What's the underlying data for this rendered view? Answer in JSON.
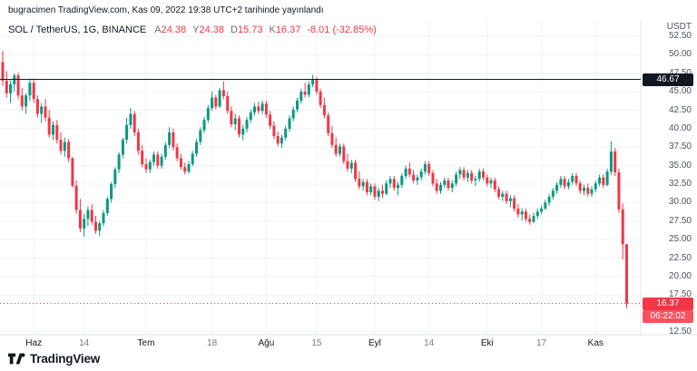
{
  "header": {
    "publish_info": "bugracimen TradingView.com, Kas 09, 2022 19:38 UTC+2 tarihinde yayınlandı"
  },
  "legend": {
    "symbol": "SOL / TetherUS, 1G, BINANCE",
    "ohlc": [
      {
        "label": "A",
        "value": "24.38"
      },
      {
        "label": "Y",
        "value": "24.38"
      },
      {
        "label": "D",
        "value": "15.73"
      },
      {
        "label": "K",
        "value": "16.37"
      }
    ],
    "change": "-8.01 (-32.85%)"
  },
  "price_axis": {
    "unit": "USDT",
    "hline_label": "46.67",
    "last_label": "16.37",
    "countdown": "06:22:02"
  },
  "footer": {
    "brand": "TradingView"
  },
  "colors": {
    "up": "#089981",
    "down": "#f23645",
    "hline": "#131722",
    "countdown": "#f7525f",
    "grid": "#f0f3fa",
    "border": "#e0e3eb",
    "text": "#131722",
    "axis_text": "#50535e"
  },
  "chart_data": {
    "type": "candlestick",
    "title": "SOL / TetherUS, 1G, BINANCE",
    "interval": "1G",
    "quote_unit": "USDT",
    "ylim": [
      12.5,
      52.5
    ],
    "y_ticks": [
      "52.50",
      "50.00",
      "47.50",
      "45.00",
      "42.50",
      "40.00",
      "37.50",
      "35.00",
      "32.50",
      "30.00",
      "27.50",
      "25.00",
      "22.50",
      "20.00",
      "17.50",
      "12.50"
    ],
    "x_ticks": [
      {
        "label": "Haz",
        "index": 8,
        "month": true
      },
      {
        "label": "14",
        "index": 21,
        "month": false
      },
      {
        "label": "Tem",
        "index": 37,
        "month": true
      },
      {
        "label": "18",
        "index": 54,
        "month": false
      },
      {
        "label": "Ağu",
        "index": 68,
        "month": true
      },
      {
        "label": "15",
        "index": 81,
        "month": false
      },
      {
        "label": "Eyl",
        "index": 96,
        "month": true
      },
      {
        "label": "14",
        "index": 110,
        "month": false
      },
      {
        "label": "Eki",
        "index": 125,
        "month": true
      },
      {
        "label": "17",
        "index": 139,
        "month": false
      },
      {
        "label": "Kas",
        "index": 153,
        "month": true
      }
    ],
    "hline": {
      "price": 46.67,
      "label": "46.67"
    },
    "last_price": {
      "price": 16.37,
      "label": "16.37",
      "countdown": "06:22:02"
    },
    "last_bar": {
      "open": 24.38,
      "high": 24.38,
      "low": 15.73,
      "close": 16.37,
      "change": -8.01,
      "change_pct": -32.85
    },
    "ohlc": [
      [
        49,
        50.5,
        45.8,
        46.5
      ],
      [
        46.5,
        47.8,
        44.2,
        44.8
      ],
      [
        44.8,
        46.5,
        43.5,
        46
      ],
      [
        46,
        47.5,
        45,
        47.2
      ],
      [
        47.2,
        47.6,
        44,
        44.5
      ],
      [
        44.5,
        45.5,
        42.5,
        43
      ],
      [
        43,
        44.8,
        42,
        44.5
      ],
      [
        44.5,
        46.8,
        43.8,
        46.2
      ],
      [
        46.2,
        46.8,
        43.5,
        44
      ],
      [
        44,
        44.5,
        41.5,
        42
      ],
      [
        42,
        43.5,
        40.8,
        43
      ],
      [
        43,
        44,
        41,
        41.5
      ],
      [
        41.5,
        42.5,
        38.8,
        39.2
      ],
      [
        39.2,
        41,
        38.5,
        40.5
      ],
      [
        40.5,
        41.2,
        38,
        38.5
      ],
      [
        38.5,
        39.5,
        36.5,
        37
      ],
      [
        37,
        38.8,
        36.2,
        38.2
      ],
      [
        38.2,
        38.6,
        35.5,
        36
      ],
      [
        36,
        36.2,
        32,
        32.3
      ],
      [
        32.3,
        33,
        28.5,
        29
      ],
      [
        29,
        30.5,
        26,
        26.5
      ],
      [
        26.5,
        28.5,
        25.4,
        27.8
      ],
      [
        27.8,
        29.5,
        26.8,
        29
      ],
      [
        29,
        29.8,
        27,
        27.4
      ],
      [
        27.4,
        28.2,
        25.8,
        26.2
      ],
      [
        26.2,
        27.5,
        25.5,
        27.2
      ],
      [
        27.2,
        29,
        26.8,
        28.6
      ],
      [
        28.6,
        30.8,
        28.2,
        30.5
      ],
      [
        30.5,
        32.8,
        30,
        32.5
      ],
      [
        32.5,
        34.8,
        32,
        34.5
      ],
      [
        34.5,
        36.8,
        34,
        36.5
      ],
      [
        36.5,
        38.8,
        36,
        38.5
      ],
      [
        38.5,
        41.5,
        38,
        40.5
      ],
      [
        40.5,
        42.8,
        40,
        42
      ],
      [
        42,
        42.4,
        39,
        39.5
      ],
      [
        39.5,
        40,
        36.5,
        37
      ],
      [
        37,
        37.8,
        34.8,
        35.2
      ],
      [
        35.2,
        36,
        34,
        34.5
      ],
      [
        34.5,
        35.8,
        34,
        35.5
      ],
      [
        35.5,
        36.9,
        35,
        36.5
      ],
      [
        36.5,
        36.9,
        34.6,
        35
      ],
      [
        35,
        36.6,
        34.6,
        36.2
      ],
      [
        36.2,
        38.2,
        35.8,
        37.8
      ],
      [
        37.8,
        40.2,
        37.4,
        39.5
      ],
      [
        39.5,
        40,
        37.1,
        37.5
      ],
      [
        37.5,
        38,
        35.6,
        36
      ],
      [
        36,
        36.6,
        34.4,
        34.8
      ],
      [
        34.8,
        35.4,
        33.8,
        34.2
      ],
      [
        34.2,
        35.6,
        33.9,
        35.2
      ],
      [
        35.2,
        37,
        34.9,
        36.6
      ],
      [
        36.6,
        38.6,
        36.2,
        38.2
      ],
      [
        38.2,
        40.2,
        37.8,
        39.8
      ],
      [
        39.8,
        41.6,
        39.4,
        41.2
      ],
      [
        41.2,
        43.2,
        40.8,
        42.8
      ],
      [
        42.8,
        45,
        42.4,
        44.2
      ],
      [
        44.2,
        44.6,
        42.6,
        43
      ],
      [
        43,
        45.5,
        42.8,
        45.2
      ],
      [
        45.2,
        46.4,
        44,
        44.4
      ],
      [
        44.4,
        45,
        42,
        42.4
      ],
      [
        42.4,
        43,
        40.2,
        40.6
      ],
      [
        40.6,
        42,
        39.8,
        41.4
      ],
      [
        41.4,
        41.8,
        38.8,
        39.2
      ],
      [
        39.2,
        40.5,
        38.4,
        40
      ],
      [
        40,
        41.6,
        39.5,
        41.2
      ],
      [
        41.2,
        42.6,
        40.8,
        42.2
      ],
      [
        42.2,
        43.5,
        41.8,
        43
      ],
      [
        43,
        43.6,
        42,
        42.4
      ],
      [
        42.4,
        43.8,
        42,
        43.4
      ],
      [
        43.4,
        43.8,
        41.5,
        41.9
      ],
      [
        41.9,
        42.4,
        40,
        40.4
      ],
      [
        40.4,
        41,
        38.6,
        39
      ],
      [
        39,
        39.6,
        37.6,
        38
      ],
      [
        38,
        39.2,
        37.4,
        38.8
      ],
      [
        38.8,
        40.4,
        38.4,
        40
      ],
      [
        40,
        41.8,
        39.6,
        41.4
      ],
      [
        41.4,
        43,
        41,
        42.6
      ],
      [
        42.6,
        44.2,
        42.2,
        43.8
      ],
      [
        43.8,
        45.4,
        43.4,
        45
      ],
      [
        45,
        46.2,
        44.2,
        44.6
      ],
      [
        44.6,
        46.4,
        44.2,
        46
      ],
      [
        46,
        47.3,
        45.6,
        46.6
      ],
      [
        46.6,
        47,
        44.6,
        45
      ],
      [
        45,
        45.4,
        42.8,
        43.2
      ],
      [
        43.2,
        44.2,
        41.4,
        41.8
      ],
      [
        41.8,
        42.2,
        39,
        39.4
      ],
      [
        39.4,
        40.4,
        37.4,
        37.8
      ],
      [
        37.8,
        38.8,
        36.2,
        36.6
      ],
      [
        36.6,
        38,
        36.2,
        37.6
      ],
      [
        37.6,
        38,
        35.2,
        35.6
      ],
      [
        35.6,
        36.6,
        34.2,
        34.6
      ],
      [
        34.6,
        35.8,
        34,
        35.4
      ],
      [
        35.4,
        35.8,
        32.8,
        33.2
      ],
      [
        33.2,
        34.2,
        31.8,
        32.2
      ],
      [
        32.2,
        33.2,
        31.6,
        32.8
      ],
      [
        32.8,
        33.2,
        31,
        31.4
      ],
      [
        31.4,
        32.6,
        31,
        32.2
      ],
      [
        32.2,
        32.6,
        30.4,
        30.8
      ],
      [
        30.8,
        32,
        30.2,
        31.6
      ],
      [
        31.6,
        32.4,
        30.6,
        31.2
      ],
      [
        31.2,
        33,
        31,
        32.6
      ],
      [
        32.6,
        33.6,
        32,
        33.2
      ],
      [
        33.2,
        33.6,
        31.6,
        32
      ],
      [
        32,
        32.8,
        31,
        32.4
      ],
      [
        32.4,
        34,
        32,
        33.6
      ],
      [
        33.6,
        35,
        33.2,
        34.6
      ],
      [
        34.6,
        35.4,
        33.4,
        33.8
      ],
      [
        33.8,
        34.4,
        32.6,
        33
      ],
      [
        33,
        33.8,
        32.4,
        33.4
      ],
      [
        33.4,
        34.6,
        33,
        34.2
      ],
      [
        34.2,
        35.6,
        33.8,
        35.2
      ],
      [
        35.2,
        35.6,
        33.6,
        34
      ],
      [
        34,
        34.4,
        32.2,
        32.6
      ],
      [
        32.6,
        33.2,
        31.2,
        31.6
      ],
      [
        31.6,
        32.8,
        31.2,
        32.4
      ],
      [
        32.4,
        33.4,
        32,
        33
      ],
      [
        33,
        33.4,
        31.6,
        32
      ],
      [
        32,
        33,
        31.4,
        32.6
      ],
      [
        32.6,
        34.2,
        32.2,
        33.8
      ],
      [
        33.8,
        34.8,
        33.2,
        34.4
      ],
      [
        34.4,
        34.8,
        33,
        33.4
      ],
      [
        33.4,
        34.4,
        32.8,
        34
      ],
      [
        34,
        34.4,
        32.6,
        33
      ],
      [
        33,
        33.6,
        32.2,
        33.2
      ],
      [
        33.2,
        34.6,
        32.8,
        34.2
      ],
      [
        34.2,
        34.6,
        33,
        33.4
      ],
      [
        33.4,
        33.8,
        32.2,
        32.6
      ],
      [
        32.6,
        33.4,
        32,
        33
      ],
      [
        33,
        33.4,
        31.4,
        31.8
      ],
      [
        31.8,
        32.2,
        30.4,
        30.8
      ],
      [
        30.8,
        31.6,
        30.2,
        31.2
      ],
      [
        31.2,
        31.6,
        29.8,
        30.2
      ],
      [
        30.2,
        31,
        29.4,
        30.6
      ],
      [
        30.6,
        31,
        28.8,
        29.2
      ],
      [
        29.2,
        29.8,
        28,
        28.4
      ],
      [
        28.4,
        29.2,
        27.6,
        28.8
      ],
      [
        28.8,
        29.2,
        27.4,
        27.8
      ],
      [
        27.8,
        28.4,
        27,
        27.4
      ],
      [
        27.4,
        28.6,
        27.2,
        28.2
      ],
      [
        28.2,
        29.2,
        27.8,
        28.8
      ],
      [
        28.8,
        29.6,
        28.4,
        29.2
      ],
      [
        29.2,
        30.4,
        29,
        30
      ],
      [
        30,
        31.2,
        29.6,
        30.8
      ],
      [
        30.8,
        32,
        30.4,
        31.6
      ],
      [
        31.6,
        32.8,
        31.2,
        32.4
      ],
      [
        32.4,
        33.6,
        32,
        33.2
      ],
      [
        33.2,
        33.6,
        31.8,
        32.2
      ],
      [
        32.2,
        33.2,
        31.8,
        32.8
      ],
      [
        32.8,
        34,
        32.4,
        33.6
      ],
      [
        33.6,
        34,
        32.2,
        32.6
      ],
      [
        32.6,
        33,
        31.2,
        31.6
      ],
      [
        31.6,
        32.4,
        31,
        32
      ],
      [
        32,
        32.6,
        30.8,
        31.2
      ],
      [
        31.2,
        32.2,
        30.8,
        31.8
      ],
      [
        31.8,
        33,
        31.4,
        32.6
      ],
      [
        32.6,
        33.8,
        32.2,
        33.4
      ],
      [
        33.4,
        33.8,
        32,
        32.4
      ],
      [
        32.4,
        34.6,
        32.2,
        34.2
      ],
      [
        34.2,
        38.3,
        33.8,
        36.9
      ],
      [
        36.9,
        37.4,
        33.6,
        34.1
      ],
      [
        34.1,
        34.6,
        28.6,
        29.1
      ],
      [
        29.1,
        29.9,
        22.3,
        24.38
      ],
      [
        24.38,
        24.38,
        15.73,
        16.37
      ]
    ]
  }
}
